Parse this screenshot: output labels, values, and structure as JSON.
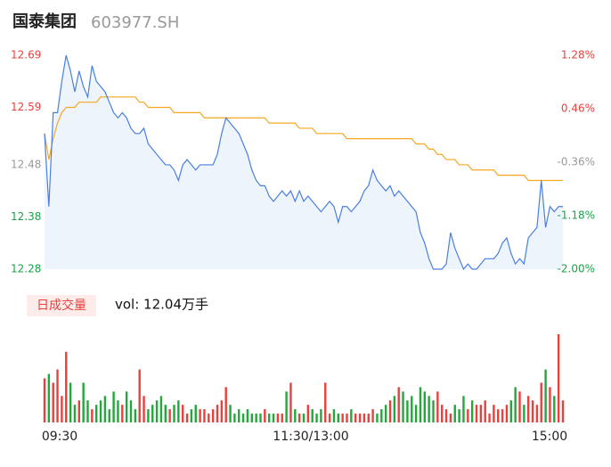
{
  "chart_data": {
    "type": "intraday",
    "title": "国泰集团",
    "code": "603977.SH",
    "ylim": [
      12.28,
      12.69
    ],
    "yticks": [
      12.69,
      12.59,
      12.48,
      12.38,
      12.28
    ],
    "ytick_colors": [
      "#e8413d",
      "#e8413d",
      "#999999",
      "#1aa34a",
      "#1aa34a"
    ],
    "y2lim": [
      -2.0,
      1.28
    ],
    "y2ticks": [
      {
        "value": 1.28,
        "label": "1.28%"
      },
      {
        "value": 0.46,
        "label": "0.46%"
      },
      {
        "value": -0.36,
        "label": "-0.36%"
      },
      {
        "value": -1.18,
        "label": "-1.18%"
      },
      {
        "value": -2.0,
        "label": "-2.00%"
      }
    ],
    "x_labels": [
      "09:30",
      "11:30/13:00",
      "15:00"
    ],
    "price": {
      "color": "#4a7fe0",
      "area_color": "#eef4fc",
      "values": [
        12.54,
        12.4,
        12.58,
        12.58,
        12.64,
        12.69,
        12.66,
        12.62,
        12.66,
        12.63,
        12.61,
        12.67,
        12.64,
        12.63,
        12.62,
        12.6,
        12.58,
        12.57,
        12.58,
        12.57,
        12.55,
        12.54,
        12.54,
        12.55,
        12.52,
        12.51,
        12.5,
        12.49,
        12.48,
        12.48,
        12.47,
        12.45,
        12.48,
        12.49,
        12.48,
        12.47,
        12.48,
        12.48,
        12.48,
        12.48,
        12.5,
        12.54,
        12.57,
        12.56,
        12.55,
        12.54,
        12.52,
        12.5,
        12.47,
        12.45,
        12.44,
        12.44,
        12.42,
        12.41,
        12.42,
        12.43,
        12.42,
        12.43,
        12.41,
        12.43,
        12.41,
        12.42,
        12.41,
        12.4,
        12.39,
        12.4,
        12.41,
        12.4,
        12.37,
        12.4,
        12.4,
        12.39,
        12.4,
        12.41,
        12.43,
        12.44,
        12.47,
        12.45,
        12.44,
        12.43,
        12.44,
        12.42,
        12.43,
        12.42,
        12.41,
        12.4,
        12.39,
        12.35,
        12.33,
        12.3,
        12.28,
        12.28,
        12.28,
        12.29,
        12.35,
        12.32,
        12.3,
        12.28,
        12.29,
        12.28,
        12.28,
        12.29,
        12.3,
        12.3,
        12.3,
        12.31,
        12.33,
        12.34,
        12.31,
        12.29,
        12.3,
        12.29,
        12.34,
        12.35,
        12.36,
        12.45,
        12.36,
        12.4,
        12.39,
        12.4,
        12.4
      ]
    },
    "average": {
      "color": "#f5a623",
      "values": [
        12.54,
        12.49,
        12.53,
        12.56,
        12.58,
        12.59,
        12.59,
        12.59,
        12.6,
        12.6,
        12.6,
        12.6,
        12.6,
        12.61,
        12.61,
        12.61,
        12.61,
        12.61,
        12.61,
        12.61,
        12.61,
        12.61,
        12.6,
        12.6,
        12.59,
        12.59,
        12.59,
        12.59,
        12.59,
        12.59,
        12.58,
        12.58,
        12.58,
        12.58,
        12.58,
        12.58,
        12.58,
        12.57,
        12.57,
        12.57,
        12.57,
        12.57,
        12.57,
        12.57,
        12.57,
        12.57,
        12.57,
        12.57,
        12.57,
        12.57,
        12.57,
        12.57,
        12.56,
        12.56,
        12.56,
        12.56,
        12.56,
        12.56,
        12.56,
        12.55,
        12.55,
        12.55,
        12.55,
        12.54,
        12.54,
        12.54,
        12.54,
        12.54,
        12.54,
        12.54,
        12.53,
        12.53,
        12.53,
        12.53,
        12.53,
        12.53,
        12.53,
        12.53,
        12.53,
        12.53,
        12.53,
        12.53,
        12.53,
        12.53,
        12.53,
        12.53,
        12.52,
        12.52,
        12.52,
        12.51,
        12.51,
        12.5,
        12.5,
        12.49,
        12.49,
        12.49,
        12.48,
        12.48,
        12.48,
        12.47,
        12.47,
        12.47,
        12.47,
        12.47,
        12.47,
        12.46,
        12.46,
        12.46,
        12.46,
        12.46,
        12.46,
        12.46,
        12.45,
        12.45,
        12.45,
        12.45,
        12.45,
        12.45,
        12.45,
        12.45,
        12.45
      ]
    },
    "volume": {
      "label": "日成交量",
      "total_text": "vol: 12.04万手",
      "ylim": [
        0,
        5000
      ],
      "up_color": "#e8413d",
      "down_color": "#22a83a",
      "values": [
        2500,
        2750,
        2250,
        3000,
        1500,
        4000,
        2250,
        1000,
        1250,
        2250,
        1250,
        750,
        1000,
        1250,
        1500,
        750,
        1750,
        1250,
        1000,
        1750,
        1250,
        750,
        3000,
        1500,
        750,
        1000,
        1250,
        1500,
        1000,
        750,
        1000,
        1250,
        1000,
        500,
        750,
        1000,
        750,
        750,
        500,
        750,
        1000,
        1250,
        2000,
        1000,
        500,
        750,
        500,
        750,
        500,
        500,
        500,
        750,
        500,
        500,
        500,
        500,
        1750,
        2250,
        750,
        500,
        500,
        1000,
        750,
        500,
        750,
        2250,
        500,
        750,
        500,
        500,
        500,
        750,
        500,
        500,
        500,
        500,
        750,
        500,
        750,
        1000,
        1250,
        1500,
        2000,
        1750,
        1250,
        1500,
        1000,
        2000,
        1750,
        1500,
        1250,
        1750,
        1000,
        750,
        500,
        1000,
        750,
        1500,
        750,
        1250,
        1000,
        1000,
        1250,
        500,
        1000,
        750,
        750,
        1000,
        1250,
        2000,
        1750,
        1000,
        1500,
        1250,
        1000,
        2250,
        3000,
        2000,
        1500,
        5000,
        1250
      ]
    }
  }
}
